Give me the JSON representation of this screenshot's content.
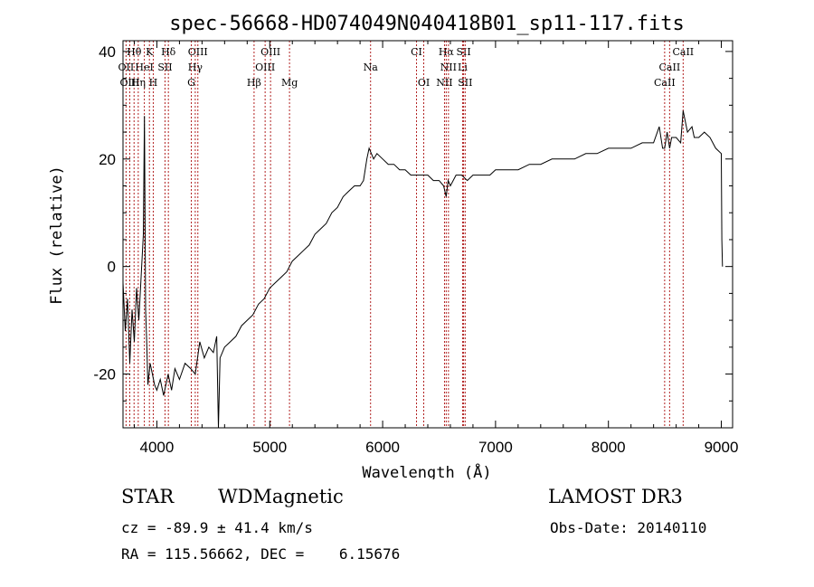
{
  "chart_data": {
    "type": "line",
    "title": "spec-56668-HD074049N040418B01_sp11-117.fits",
    "xlabel": "Wavelength (Å)",
    "ylabel": "Flux (relative)",
    "xlim": [
      3700,
      9100
    ],
    "ylim": [
      -30,
      42
    ],
    "xticks": [
      4000,
      5000,
      6000,
      7000,
      8000,
      9000
    ],
    "yticks": [
      -20,
      0,
      20,
      40
    ],
    "grid": false,
    "series": [
      {
        "x": [
          3700,
          3720,
          3740,
          3760,
          3780,
          3800,
          3820,
          3840,
          3860,
          3880,
          3890,
          3900,
          3910,
          3920,
          3940,
          3960,
          3980,
          4000,
          4030,
          4060,
          4100,
          4130,
          4160,
          4200,
          4250,
          4300,
          4340,
          4380,
          4420,
          4460,
          4500,
          4530,
          4545,
          4560,
          4600,
          4650,
          4700,
          4750,
          4800,
          4850,
          4900,
          4950,
          5000,
          5050,
          5100,
          5150,
          5200,
          5250,
          5300,
          5350,
          5400,
          5450,
          5500,
          5550,
          5600,
          5650,
          5700,
          5750,
          5800,
          5830,
          5860,
          5880,
          5900,
          5920,
          5950,
          6000,
          6050,
          6100,
          6150,
          6200,
          6250,
          6300,
          6350,
          6400,
          6450,
          6500,
          6540,
          6563,
          6580,
          6600,
          6650,
          6700,
          6750,
          6800,
          6850,
          6900,
          6950,
          7000,
          7100,
          7200,
          7300,
          7400,
          7500,
          7600,
          7700,
          7800,
          7900,
          8000,
          8100,
          8200,
          8300,
          8400,
          8450,
          8480,
          8498,
          8520,
          8542,
          8560,
          8600,
          8640,
          8662,
          8700,
          8740,
          8760,
          8800,
          8850,
          8900,
          8950,
          9000,
          9005,
          9010
        ],
        "y": [
          -3,
          -12,
          -6,
          -18,
          -8,
          -14,
          -4,
          -10,
          -2,
          6,
          28,
          -8,
          -14,
          -22,
          -18,
          -20,
          -22,
          -23,
          -21,
          -24,
          -20,
          -23,
          -19,
          -21,
          -18,
          -19,
          -20,
          -14,
          -17,
          -15,
          -16,
          -13,
          -30,
          -17,
          -15,
          -14,
          -13,
          -11,
          -10,
          -9,
          -7,
          -6,
          -4,
          -3,
          -2,
          -1,
          1,
          2,
          3,
          4,
          6,
          7,
          8,
          10,
          11,
          13,
          14,
          15,
          15,
          16,
          20,
          22,
          21,
          20,
          21,
          20,
          19,
          19,
          18,
          18,
          17,
          17,
          17,
          17,
          16,
          16,
          15,
          13,
          16,
          15,
          17,
          17,
          16,
          17,
          17,
          17,
          17,
          18,
          18,
          18,
          19,
          19,
          20,
          20,
          20,
          21,
          21,
          22,
          22,
          22,
          23,
          23,
          26,
          22,
          22,
          25,
          22,
          24,
          24,
          23,
          29,
          25,
          26,
          24,
          24,
          25,
          24,
          22,
          21,
          5,
          0
        ]
      }
    ],
    "lines": [
      {
        "label": "Hθ",
        "x": 3798,
        "row": 0
      },
      {
        "label": "K",
        "x": 3934,
        "row": 0
      },
      {
        "label": "Hδ",
        "x": 4102,
        "row": 0
      },
      {
        "label": "OIII",
        "x": 4363,
        "row": 0
      },
      {
        "label": "OIII",
        "x": 5007,
        "row": 0
      },
      {
        "label": "CI",
        "x": 6300,
        "row": 0
      },
      {
        "label": "Hα",
        "x": 6563,
        "row": 0
      },
      {
        "label": "SII",
        "x": 6717,
        "row": 0
      },
      {
        "label": "CaII",
        "x": 8662,
        "row": 0
      },
      {
        "label": "OII",
        "x": 3727,
        "row": 1
      },
      {
        "label": "HeI",
        "x": 3889,
        "row": 1
      },
      {
        "label": "SII",
        "x": 4072,
        "row": 1
      },
      {
        "label": "Hγ",
        "x": 4340,
        "row": 1
      },
      {
        "label": "OIII",
        "x": 4959,
        "row": 1
      },
      {
        "label": "Na",
        "x": 5893,
        "row": 1
      },
      {
        "label": "NII",
        "x": 6583,
        "row": 1
      },
      {
        "label": "Li",
        "x": 6708,
        "row": 1
      },
      {
        "label": "CaII",
        "x": 8542,
        "row": 1
      },
      {
        "label": "OIII",
        "x": 3760,
        "row": 2
      },
      {
        "label": "Hη",
        "x": 3835,
        "row": 2
      },
      {
        "label": "H",
        "x": 3968,
        "row": 2
      },
      {
        "label": "G",
        "x": 4305,
        "row": 2
      },
      {
        "label": "Hβ",
        "x": 4861,
        "row": 2
      },
      {
        "label": "Mg",
        "x": 5175,
        "row": 2
      },
      {
        "label": "OI",
        "x": 6364,
        "row": 2
      },
      {
        "label": "NII",
        "x": 6548,
        "row": 2
      },
      {
        "label": "SII",
        "x": 6731,
        "row": 2
      },
      {
        "label": "CaII",
        "x": 8498,
        "row": 2
      }
    ]
  },
  "info": {
    "class": "STAR",
    "subclass": "WDMagnetic",
    "survey": "LAMOST DR3",
    "cz": "cz = -89.9 ± 41.4 km/s",
    "obs_date": "Obs-Date: 20140110",
    "radec": "RA = 115.56662, DEC =    6.15676"
  }
}
